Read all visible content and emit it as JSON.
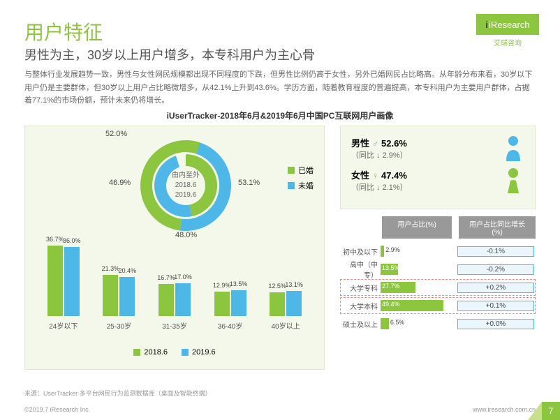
{
  "brand": {
    "name": "iResearch",
    "sub": "艾瑞咨询",
    "color": "#8cc63f"
  },
  "title": "用户特征",
  "subtitle": "男性为主，30岁以上用户增多，本专科用户为主心骨",
  "desc": "与整体行业发展趋势一致，男性与女性网民规模都出现不同程度的下跌，但男性比例仍高于女性，另外已婚网民占比略高。从年龄分布来看，30岁以下用户仍是主要群体，但30岁以上用户占比略微增多，从42.1%上升到43.6%。学历方面，随着教育程度的普遍提高，本专科用户为主要用户群体，占据着77.1%的市场份额，预计未来仍将增长。",
  "chart_title": "iUserTracker-2018年6月&2019年6月中国PC互联网用户画像",
  "donut": {
    "center": [
      "由内至外",
      "2018.6",
      "2019.6"
    ],
    "inner": [
      {
        "label": "46.9%",
        "value": 46.9,
        "color": "#8cc63f"
      },
      {
        "label": "48.0%",
        "value": 48.0,
        "color": "#4db8e8"
      }
    ],
    "outer": [
      {
        "label": "52.0%",
        "value": 52.0,
        "color": "#4db8e8"
      },
      {
        "label": "53.1%",
        "value": 53.1,
        "color": "#8cc63f"
      }
    ],
    "legend": [
      {
        "label": "已婚",
        "color": "#8cc63f"
      },
      {
        "label": "未婚",
        "color": "#4db8e8"
      }
    ]
  },
  "bars": {
    "categories": [
      "24岁以下",
      "25-30岁",
      "31-35岁",
      "36-40岁",
      "40岁以上"
    ],
    "series": [
      {
        "name": "2018.6",
        "color": "#8cc63f",
        "values": [
          36.7,
          21.3,
          16.7,
          12.9,
          12.5
        ]
      },
      {
        "name": "2019.6",
        "color": "#4db8e8",
        "values": [
          36.0,
          20.4,
          17.0,
          13.5,
          13.1
        ]
      }
    ],
    "ymax": 40
  },
  "gender": {
    "male": {
      "label": "男性",
      "symbol": "♂",
      "pct": "52.6%",
      "change": "同比 ↓ 2.9%",
      "color": "#4db8e8"
    },
    "female": {
      "label": "女性",
      "symbol": "♀",
      "pct": "47.4%",
      "change": "（同比 ↓ 2.1%）",
      "color": "#8cc63f"
    }
  },
  "edu": {
    "h1": "用户占比(%)",
    "h2": "用户占比同比增长(%)",
    "rows": [
      {
        "label": "初中及以下",
        "pct": 2.9,
        "change": "-0.1%",
        "hl": false
      },
      {
        "label": "高中（中专）",
        "pct": 13.5,
        "change": "-0.2%",
        "hl": false
      },
      {
        "label": "大学专科",
        "pct": 27.7,
        "change": "+0.2%",
        "hl": true
      },
      {
        "label": "大学本科",
        "pct": 49.4,
        "change": "+0.1%",
        "hl": true
      },
      {
        "label": "硕士及以上",
        "pct": 6.5,
        "change": "+0.0%",
        "hl": false
      }
    ],
    "bar_color": "#8cc63f",
    "max": 55
  },
  "source": "来源：UserTracker 多平台网民行为监测数据库（桌面及智能终端）",
  "footer_left": "©2019.7 iResearch Inc.",
  "footer_right": "www.iresearch.com.cn",
  "page": "7"
}
